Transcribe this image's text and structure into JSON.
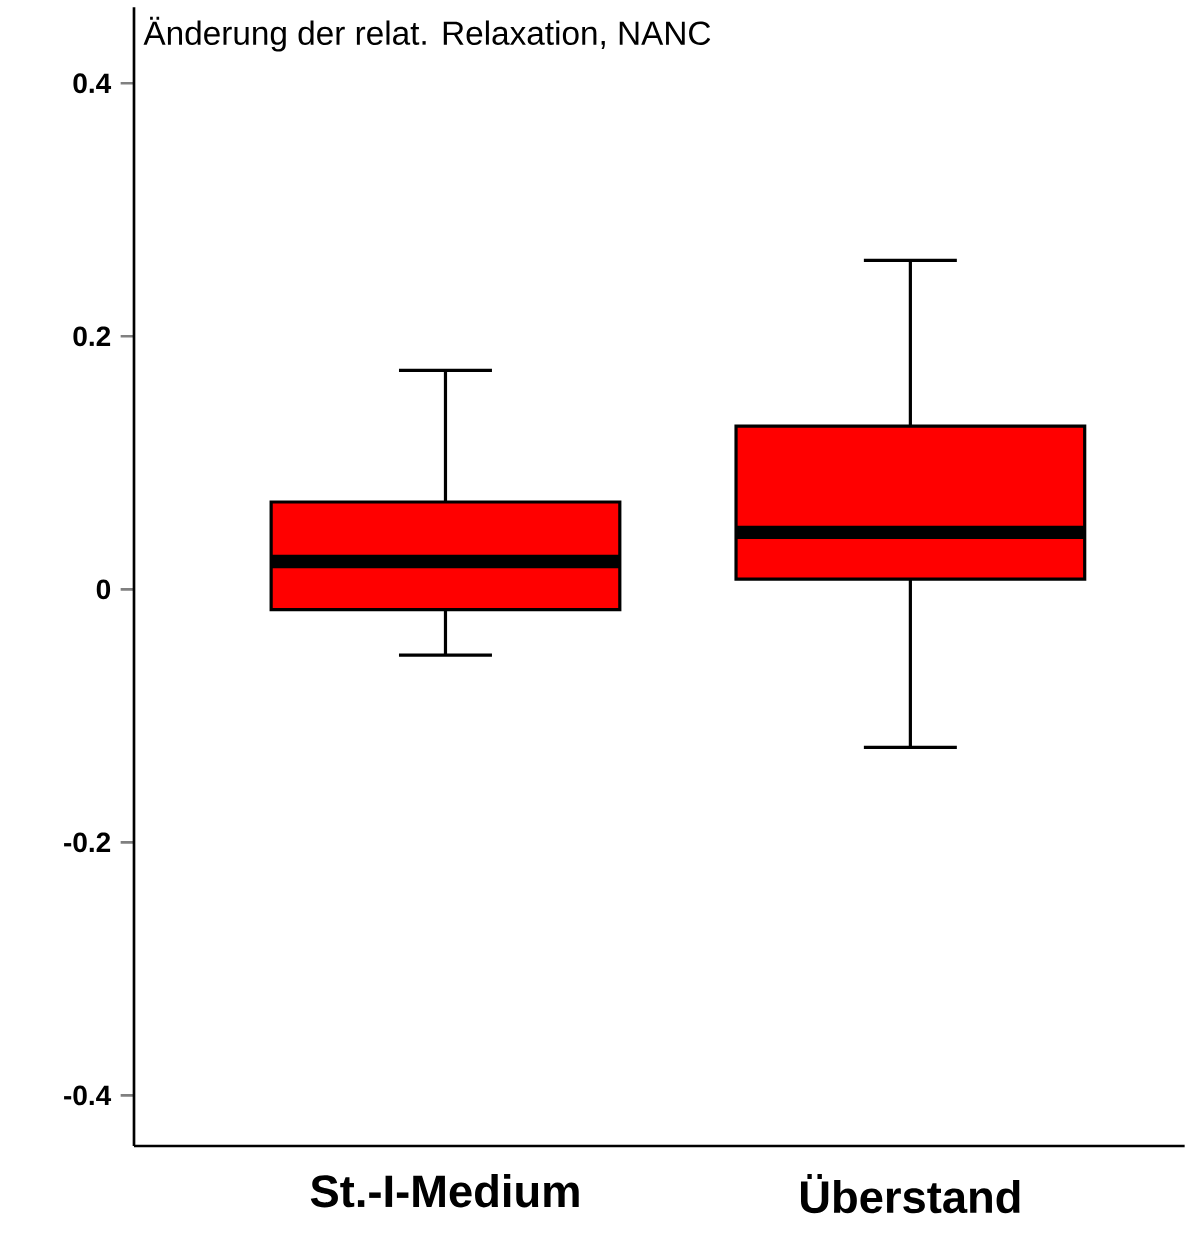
{
  "chart_data": {
    "type": "box",
    "title": "Änderung der relat. Relaxation, NANC",
    "categories": [
      "St.-I-Medium",
      "Überstand"
    ],
    "color": "#ff0000",
    "boxes": [
      {
        "low": -0.052,
        "q1": -0.016,
        "median": 0.022,
        "q3": 0.069,
        "high": 0.173
      },
      {
        "low": -0.125,
        "q1": 0.008,
        "median": 0.045,
        "q3": 0.129,
        "high": 0.26
      }
    ],
    "ylim": [
      -0.44,
      0.46
    ],
    "yticks": [
      -0.4,
      -0.2,
      0,
      0.2,
      0.4
    ]
  }
}
